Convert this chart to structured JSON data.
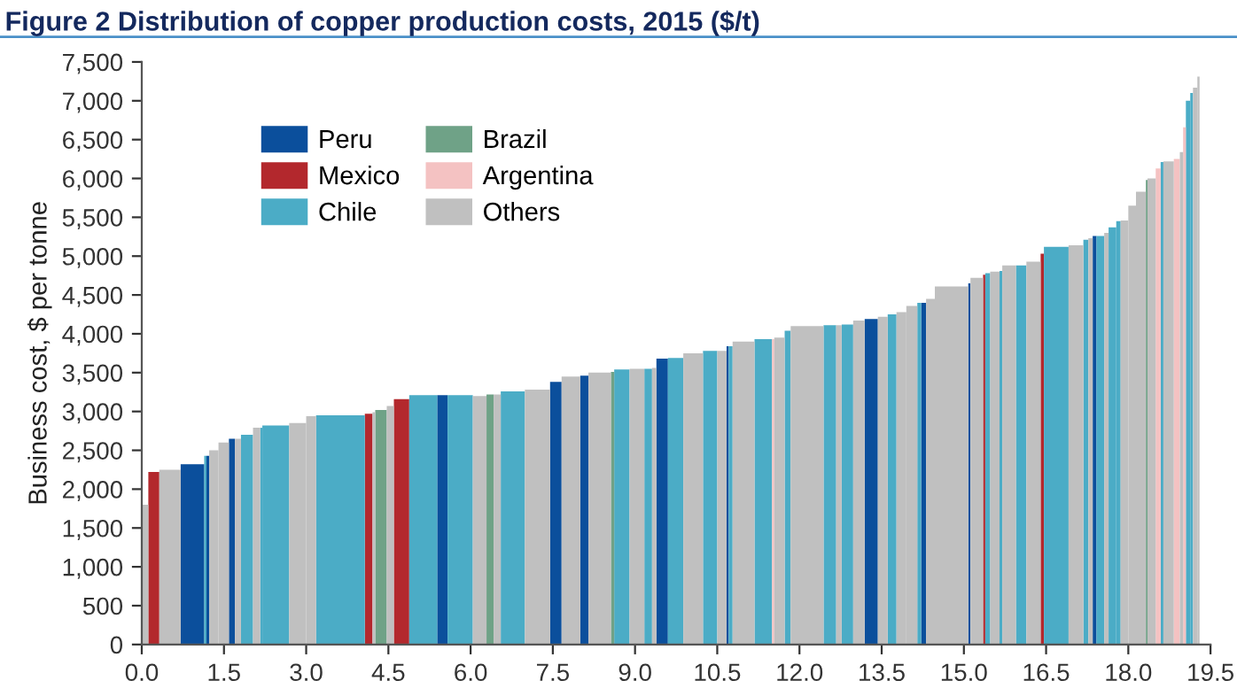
{
  "chart_data": {
    "type": "histogram",
    "title": "Figure 2 Distribution of copper production costs, 2015 ($/t)",
    "ylabel": "Business cost, $ per tonne",
    "bins": [
      0,
      0.12,
      0.32,
      0.71,
      1.14,
      1.18,
      1.23,
      1.4,
      1.59,
      1.7,
      1.81,
      2.03,
      2.16,
      2.2,
      2.69,
      3.0,
      3.18,
      4.07,
      4.21,
      4.26,
      4.47,
      4.6,
      4.88,
      5.39,
      5.58,
      6.04,
      6.29,
      6.42,
      6.55,
      6.99,
      7.45,
      7.66,
      8.0,
      8.15,
      8.56,
      8.62,
      8.9,
      9.17,
      9.31,
      9.39,
      9.6,
      9.88,
      10.24,
      10.5,
      10.67,
      10.71,
      10.78,
      11.18,
      11.5,
      11.54,
      11.73,
      11.84,
      12.44,
      12.67,
      12.77,
      12.98,
      13.19,
      13.43,
      13.61,
      13.77,
      13.95,
      14.15,
      14.22,
      14.31,
      14.47,
      15.08,
      15.12,
      15.35,
      15.39,
      15.48,
      15.65,
      15.7,
      15.95,
      16.14,
      16.4,
      16.46,
      16.91,
      17.18,
      17.27,
      17.35,
      17.42,
      17.56,
      17.64,
      17.78,
      17.86,
      18.0,
      18.14,
      18.32,
      18.35,
      18.5,
      18.59,
      18.64,
      18.83,
      18.94,
      19.0,
      19.05,
      19.13,
      19.18,
      19.26,
      19.3
    ],
    "series": [
      {
        "name": "Peru",
        "color": "#0b4f9c",
        "values": [
          null,
          null,
          null,
          2320,
          null,
          2430,
          null,
          null,
          2650,
          null,
          null,
          null,
          null,
          null,
          null,
          null,
          null,
          null,
          null,
          null,
          null,
          null,
          null,
          3210,
          null,
          null,
          null,
          null,
          null,
          null,
          3380,
          null,
          3460,
          null,
          null,
          null,
          null,
          null,
          null,
          3680,
          null,
          null,
          null,
          null,
          3840,
          null,
          null,
          null,
          null,
          null,
          null,
          null,
          null,
          null,
          null,
          null,
          4190,
          null,
          null,
          null,
          null,
          null,
          4400,
          null,
          null,
          4650,
          null,
          null,
          null,
          null,
          null,
          null,
          null,
          null,
          null,
          null,
          null,
          null,
          null,
          5260,
          null,
          null,
          null,
          null,
          null,
          null,
          null,
          null,
          null,
          null,
          null,
          null,
          null,
          null,
          null,
          null,
          null,
          null,
          null
        ]
      },
      {
        "name": "Mexico",
        "color": "#b3282d",
        "values": [
          null,
          2220,
          null,
          null,
          null,
          null,
          null,
          null,
          null,
          null,
          null,
          null,
          null,
          null,
          null,
          null,
          null,
          2970,
          null,
          null,
          null,
          3160,
          null,
          null,
          null,
          null,
          null,
          null,
          null,
          null,
          null,
          null,
          null,
          null,
          null,
          null,
          null,
          null,
          null,
          null,
          null,
          null,
          null,
          null,
          null,
          null,
          null,
          null,
          null,
          null,
          null,
          null,
          null,
          null,
          null,
          null,
          null,
          null,
          null,
          null,
          null,
          null,
          null,
          null,
          null,
          null,
          null,
          4760,
          null,
          null,
          null,
          null,
          null,
          null,
          5030,
          null,
          null,
          null,
          null,
          null,
          null,
          null,
          null,
          null,
          null,
          null,
          null,
          null,
          null,
          null,
          null,
          null,
          null,
          null,
          null,
          null,
          null,
          null,
          null
        ]
      },
      {
        "name": "Chile",
        "color": "#4bacc6",
        "values": [
          null,
          null,
          null,
          null,
          2430,
          null,
          null,
          null,
          null,
          null,
          2700,
          null,
          2790,
          2820,
          null,
          null,
          2950,
          null,
          null,
          null,
          null,
          null,
          3210,
          null,
          3210,
          null,
          null,
          null,
          3260,
          null,
          null,
          null,
          null,
          null,
          null,
          3540,
          null,
          3550,
          null,
          null,
          3690,
          null,
          3780,
          null,
          null,
          3840,
          null,
          3930,
          null,
          null,
          4040,
          null,
          4110,
          null,
          4120,
          null,
          null,
          null,
          4250,
          null,
          null,
          4400,
          null,
          null,
          null,
          null,
          null,
          null,
          4780,
          null,
          4810,
          null,
          4880,
          null,
          null,
          5120,
          null,
          5210,
          null,
          null,
          5260,
          null,
          5370,
          5450,
          null,
          null,
          null,
          null,
          null,
          null,
          6210,
          null,
          null,
          null,
          null,
          7000,
          7100,
          null,
          null
        ]
      },
      {
        "name": "Brazil",
        "color": "#6fa287",
        "values": [
          null,
          null,
          null,
          null,
          null,
          null,
          null,
          null,
          null,
          null,
          null,
          null,
          null,
          null,
          null,
          null,
          null,
          null,
          null,
          3020,
          null,
          null,
          null,
          null,
          null,
          null,
          3220,
          null,
          null,
          null,
          null,
          null,
          null,
          null,
          3510,
          null,
          null,
          null,
          null,
          null,
          null,
          null,
          null,
          null,
          null,
          null,
          null,
          null,
          null,
          null,
          null,
          null,
          null,
          null,
          null,
          null,
          null,
          null,
          null,
          null,
          null,
          null,
          null,
          null,
          null,
          null,
          null,
          null,
          null,
          null,
          null,
          null,
          null,
          null,
          null,
          null,
          null,
          null,
          null,
          null,
          null,
          null,
          null,
          null,
          null,
          null,
          null,
          5980,
          null,
          null,
          null,
          null,
          null,
          null,
          null,
          null,
          null,
          null,
          null
        ]
      },
      {
        "name": "Argentina",
        "color": "#f4c2c2",
        "values": [
          null,
          null,
          null,
          null,
          null,
          null,
          null,
          null,
          null,
          null,
          null,
          null,
          null,
          null,
          null,
          null,
          null,
          null,
          null,
          null,
          null,
          null,
          null,
          null,
          null,
          null,
          null,
          null,
          null,
          null,
          null,
          null,
          null,
          null,
          null,
          null,
          null,
          null,
          null,
          null,
          null,
          null,
          null,
          null,
          null,
          null,
          null,
          null,
          3930,
          null,
          null,
          null,
          null,
          null,
          null,
          null,
          null,
          null,
          null,
          null,
          null,
          null,
          null,
          null,
          null,
          null,
          null,
          null,
          null,
          null,
          null,
          null,
          null,
          null,
          null,
          null,
          null,
          null,
          null,
          null,
          null,
          null,
          null,
          null,
          null,
          null,
          null,
          null,
          null,
          6130,
          null,
          null,
          6250,
          null,
          6660,
          null,
          null,
          null,
          null
        ]
      },
      {
        "name": "Others",
        "color": "#c0c0c0",
        "values": [
          1800,
          null,
          2250,
          null,
          null,
          null,
          2500,
          2600,
          null,
          2650,
          null,
          2790,
          null,
          null,
          2850,
          2940,
          null,
          null,
          2990,
          null,
          3070,
          null,
          null,
          null,
          null,
          3200,
          null,
          3220,
          null,
          3280,
          null,
          3450,
          null,
          3500,
          null,
          null,
          3550,
          null,
          3560,
          null,
          null,
          3750,
          null,
          3780,
          null,
          null,
          3900,
          null,
          null,
          3950,
          null,
          4100,
          null,
          4110,
          null,
          4170,
          null,
          4220,
          null,
          4280,
          4360,
          null,
          null,
          4450,
          4610,
          null,
          4720,
          null,
          null,
          4800,
          null,
          4880,
          null,
          4930,
          null,
          null,
          5140,
          null,
          5230,
          null,
          null,
          5300,
          null,
          null,
          5460,
          5650,
          5830,
          null,
          6000,
          null,
          null,
          6220,
          null,
          6340,
          null,
          null,
          null,
          7170,
          7310
        ]
      }
    ],
    "xlim": [
      0,
      19.5
    ],
    "xticks": [
      {
        "value": 0,
        "label": "0.0"
      },
      {
        "value": 1.5,
        "label": "1.5"
      },
      {
        "value": 3,
        "label": "3.0"
      },
      {
        "value": 4.5,
        "label": "4.5"
      },
      {
        "value": 6,
        "label": "6.0"
      },
      {
        "value": 7.5,
        "label": "7.5"
      },
      {
        "value": 9,
        "label": "9.0"
      },
      {
        "value": 10.5,
        "label": "10.5"
      },
      {
        "value": 12,
        "label": "12.0"
      },
      {
        "value": 13.5,
        "label": "13.5"
      },
      {
        "value": 15,
        "label": "15.0"
      },
      {
        "value": 16.5,
        "label": "16.5"
      },
      {
        "value": 18,
        "label": "18.0"
      },
      {
        "value": 19.5,
        "label": "19.5"
      }
    ],
    "ylim": [
      0,
      7500
    ],
    "yticks": [
      0,
      500,
      {
        "value": 1000,
        "label": "1,000"
      },
      {
        "value": 1500,
        "label": "1,500"
      },
      {
        "value": 2000,
        "label": "2,000"
      },
      {
        "value": 2500,
        "label": "2,500"
      },
      {
        "value": 3000,
        "label": "3,000"
      },
      {
        "value": 3500,
        "label": "3,500"
      },
      {
        "value": 4000,
        "label": "4,000"
      },
      {
        "value": 4500,
        "label": "4,500"
      },
      {
        "value": 5000,
        "label": "5,000"
      },
      {
        "value": 5500,
        "label": "5,500"
      },
      {
        "value": 6000,
        "label": "6,000"
      },
      {
        "value": 6500,
        "label": "6,500"
      },
      {
        "value": 7000,
        "label": "7,000"
      },
      {
        "value": 7500,
        "label": "7,500"
      }
    ],
    "legend": "top left"
  }
}
